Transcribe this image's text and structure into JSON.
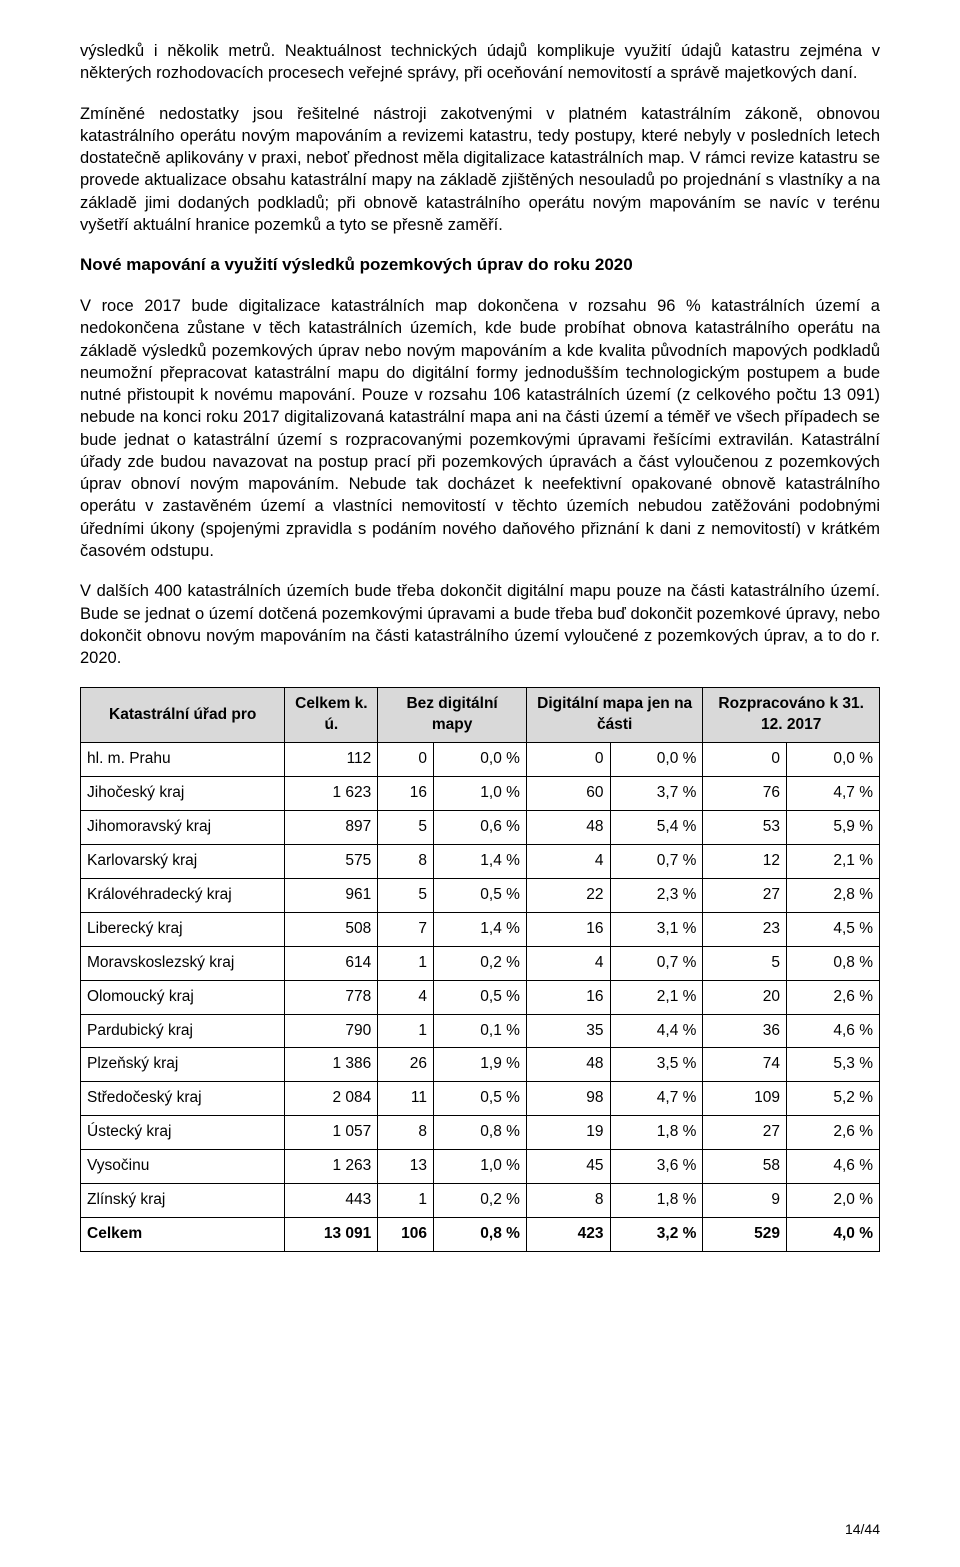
{
  "para1": "výsledků i několik metrů. Neaktuálnost technických údajů komplikuje využití údajů katastru zejména v některých rozhodovacích procesech veřejné správy, při oceňování nemovitostí a správě majetkových daní.",
  "para2": "Zmíněné nedostatky jsou řešitelné nástroji zakotvenými v platném katastrálním zákoně, obnovou katastrálního operátu novým mapováním a revizemi katastru, tedy postupy, které nebyly v posledních letech dostatečně aplikovány v praxi, neboť přednost měla digitalizace katastrálních map. V rámci revize katastru se provede aktualizace obsahu katastrální mapy na základě zjištěných nesouladů po projednání s vlastníky a na základě jimi dodaných podkladů; při obnově katastrálního operátu novým mapováním se navíc v terénu vyšetří aktuální hranice pozemků a tyto se přesně zaměří.",
  "heading1": "Nové mapování a využití výsledků pozemkových úprav do roku 2020",
  "para3": "V roce 2017 bude digitalizace katastrálních map dokončena v rozsahu 96 % katastrálních území a nedokončena zůstane v těch katastrálních územích, kde bude probíhat obnova katastrálního operátu na základě výsledků pozemkových úprav nebo novým mapováním a kde kvalita původních mapových podkladů neumožní přepracovat katastrální mapu do digitální formy jednodušším technologickým postupem a bude nutné přistoupit k novému mapování. Pouze v rozsahu 106 katastrálních území (z celkového počtu 13 091) nebude na konci roku 2017 digitalizovaná katastrální mapa ani na části území a téměř ve všech případech se bude jednat o katastrální území s rozpracovanými pozemkovými úpravami řešícími extravilán. Katastrální úřady zde budou navazovat na postup prací při pozemkových úpravách a část vyloučenou z pozemkových úprav obnoví novým mapováním. Nebude tak docházet k neefektivní opakované obnově katastrálního operátu v zastavěném území a vlastníci nemovitostí v těchto územích nebudou zatěžováni podobnými úředními úkony (spojenými zpravidla s podáním nového daňového přiznání k dani z nemovitostí) v krátkém časovém odstupu.",
  "para4": "V dalších 400 katastrálních územích bude třeba dokončit digitální mapu pouze na části katastrálního území. Bude se jednat o území dotčená pozemkovými úpravami a bude třeba buď dokončit pozemkové úpravy, nebo dokončit obnovu novým mapováním na části katastrálního území vyloučené z pozemkových úprav, a to do r. 2020.",
  "table": {
    "headers": {
      "h1": "Katastrální úřad pro",
      "h2": "Celkem k. ú.",
      "h3": "Bez digitální mapy",
      "h4": "Digitální mapa jen na části",
      "h5": "Rozpracováno k 31. 12. 2017"
    },
    "rows": [
      {
        "name": "hl. m. Prahu",
        "total": "112",
        "a": "0",
        "b": "0,0 %",
        "c": "0",
        "d": "0,0 %",
        "e": "0",
        "f": "0,0 %"
      },
      {
        "name": "Jihočeský kraj",
        "total": "1 623",
        "a": "16",
        "b": "1,0 %",
        "c": "60",
        "d": "3,7 %",
        "e": "76",
        "f": "4,7 %"
      },
      {
        "name": "Jihomoravský kraj",
        "total": "897",
        "a": "5",
        "b": "0,6 %",
        "c": "48",
        "d": "5,4 %",
        "e": "53",
        "f": "5,9 %"
      },
      {
        "name": "Karlovarský kraj",
        "total": "575",
        "a": "8",
        "b": "1,4 %",
        "c": "4",
        "d": "0,7 %",
        "e": "12",
        "f": "2,1 %"
      },
      {
        "name": "Královéhradecký kraj",
        "total": "961",
        "a": "5",
        "b": "0,5 %",
        "c": "22",
        "d": "2,3 %",
        "e": "27",
        "f": "2,8 %"
      },
      {
        "name": "Liberecký kraj",
        "total": "508",
        "a": "7",
        "b": "1,4 %",
        "c": "16",
        "d": "3,1 %",
        "e": "23",
        "f": "4,5 %"
      },
      {
        "name": "Moravskoslezský kraj",
        "total": "614",
        "a": "1",
        "b": "0,2 %",
        "c": "4",
        "d": "0,7 %",
        "e": "5",
        "f": "0,8 %"
      },
      {
        "name": "Olomoucký kraj",
        "total": "778",
        "a": "4",
        "b": "0,5 %",
        "c": "16",
        "d": "2,1 %",
        "e": "20",
        "f": "2,6 %"
      },
      {
        "name": "Pardubický kraj",
        "total": "790",
        "a": "1",
        "b": "0,1 %",
        "c": "35",
        "d": "4,4 %",
        "e": "36",
        "f": "4,6 %"
      },
      {
        "name": "Plzeňský kraj",
        "total": "1 386",
        "a": "26",
        "b": "1,9 %",
        "c": "48",
        "d": "3,5 %",
        "e": "74",
        "f": "5,3 %"
      },
      {
        "name": "Středočeský kraj",
        "total": "2 084",
        "a": "11",
        "b": "0,5 %",
        "c": "98",
        "d": "4,7 %",
        "e": "109",
        "f": "5,2 %"
      },
      {
        "name": "Ústecký kraj",
        "total": "1 057",
        "a": "8",
        "b": "0,8 %",
        "c": "19",
        "d": "1,8 %",
        "e": "27",
        "f": "2,6 %"
      },
      {
        "name": "Vysočinu",
        "total": "1 263",
        "a": "13",
        "b": "1,0 %",
        "c": "45",
        "d": "3,6 %",
        "e": "58",
        "f": "4,6 %"
      },
      {
        "name": "Zlínský kraj",
        "total": "443",
        "a": "1",
        "b": "0,2 %",
        "c": "8",
        "d": "1,8 %",
        "e": "9",
        "f": "2,0 %"
      }
    ],
    "total_row": {
      "name": "Celkem",
      "total": "13 091",
      "a": "106",
      "b": "0,8 %",
      "c": "423",
      "d": "3,2 %",
      "e": "529",
      "f": "4,0 %"
    }
  },
  "footer": "14/44"
}
